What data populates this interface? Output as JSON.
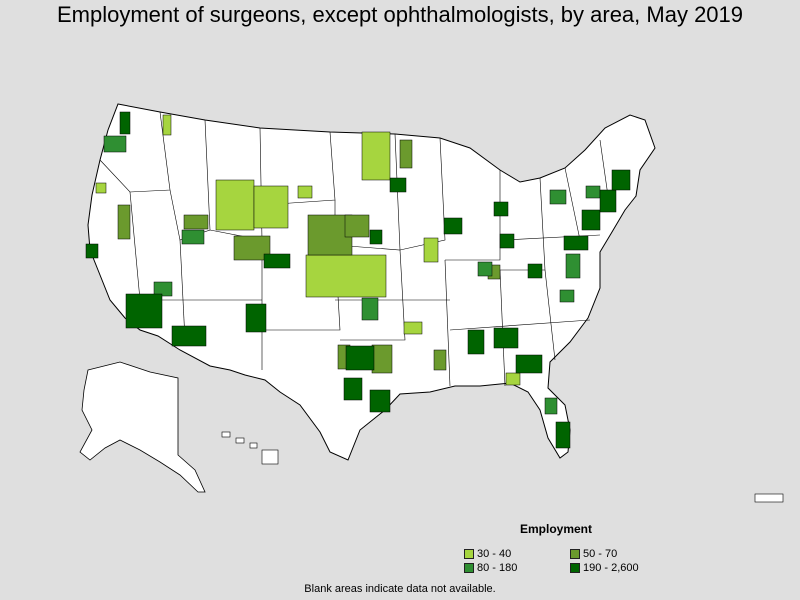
{
  "title": "Employment of surgeons, except ophthalmologists, by area, May 2019",
  "legend": {
    "title": "Employment",
    "items": [
      {
        "label": "30 - 40",
        "color": "#a6d53f"
      },
      {
        "label": "50 - 70",
        "color": "#6b9a2d"
      },
      {
        "label": "80 - 180",
        "color": "#2f8f32"
      },
      {
        "label": "190 - 2,600",
        "color": "#006400"
      }
    ]
  },
  "footnote": "Blank areas indicate data not available.",
  "colors": {
    "background": "#dfdfdf",
    "land": "#ffffff",
    "border": "#000000"
  }
}
